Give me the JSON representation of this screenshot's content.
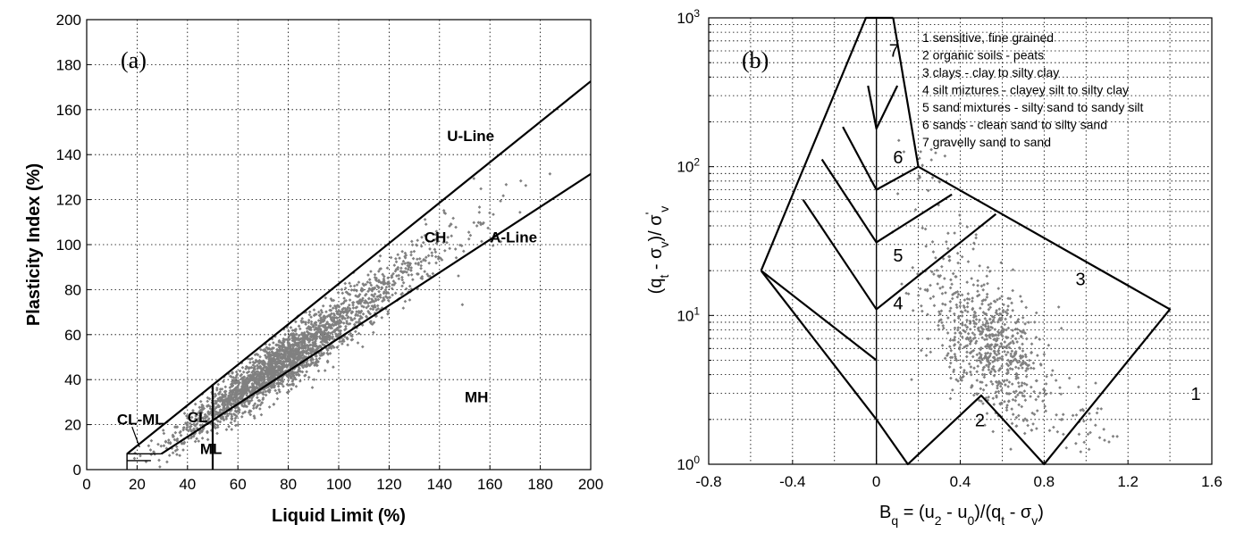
{
  "chart_data": [
    {
      "type": "scatter",
      "panel_label": "(a)",
      "xlabel": "Liquid Limit (%)",
      "ylabel": "Plasticity Index (%)",
      "xlim": [
        0,
        200
      ],
      "ylim": [
        0,
        200
      ],
      "xticks": [
        "0",
        "20",
        "40",
        "60",
        "80",
        "100",
        "120",
        "140",
        "160",
        "180",
        "200"
      ],
      "yticks": [
        "0",
        "20",
        "40",
        "60",
        "80",
        "100",
        "120",
        "140",
        "160",
        "180",
        "200"
      ],
      "grid": true,
      "marker_color": "#808080",
      "line_color": "#000000",
      "lines": [
        {
          "label": "U-Line",
          "points": [
            [
              16,
              7
            ],
            [
              200,
              172.6
            ]
          ]
        },
        {
          "label": "A-Line",
          "points": [
            [
              29.6,
              7
            ],
            [
              200,
              131.4
            ]
          ]
        }
      ],
      "regions": [
        {
          "label": "U-Line",
          "at": [
            143,
            146
          ]
        },
        {
          "label": "CH",
          "at": [
            134,
            101
          ]
        },
        {
          "label": "A-Line",
          "at": [
            160,
            101
          ]
        },
        {
          "label": "MH",
          "at": [
            150,
            30
          ]
        },
        {
          "label": "CL-ML",
          "at": [
            12,
            20
          ]
        },
        {
          "label": "CL",
          "at": [
            40,
            21
          ]
        },
        {
          "label": "ML",
          "at": [
            45,
            7
          ]
        }
      ],
      "points_model": {
        "n": 2500,
        "ll_range": [
          16,
          200
        ],
        "ll_mode": 70,
        "pi_center": "0.8*(LL-18)",
        "spread": 3.5
      }
    },
    {
      "type": "scatter",
      "panel_label": "(b)",
      "xlabel_main": "B",
      "xlabel_sub": "q",
      "xlabel_rest": " = (u",
      "xlabel_sub2": "2",
      "xlabel_rest2": " - u",
      "xlabel_sub3": "0",
      "xlabel_rest3": ")/(q",
      "xlabel_sub4": "t",
      "xlabel_rest4": " - σ",
      "xlabel_sub5": "v",
      "xlabel_rest5": ")",
      "ylabel_main": "(q",
      "ylabel_sub": "t",
      "ylabel_rest": " - σ",
      "ylabel_sub2": "v",
      "ylabel_rest2": ")/ σ",
      "ylabel_sup": "'",
      "ylabel_sub3": "v",
      "xlim": [
        -0.8,
        1.6
      ],
      "ylim": [
        1,
        1000
      ],
      "yscale": "log",
      "xticks": [
        "-0.8",
        "-0.4",
        "0",
        "0.4",
        "0.8",
        "1.2",
        "1.6"
      ],
      "yticks": [
        {
          "base": "10",
          "exp": "0"
        },
        {
          "base": "10",
          "exp": "1"
        },
        {
          "base": "10",
          "exp": "2"
        },
        {
          "base": "10",
          "exp": "3"
        }
      ],
      "grid": true,
      "marker_color": "#808080",
      "legend": [
        "1 sensitive, fine grained",
        "2 organic soils - peats",
        "3 clays - clay to silty clay",
        "4 silt miztures - clayey silt to silty clay",
        "5 sand mixtures - silty sand to sandy silt",
        "6 sands - clean sand to silty sand",
        "7 gravelly sand to sand"
      ],
      "zones": [
        {
          "label": "1",
          "at": [
            1.5,
            2.7
          ]
        },
        {
          "label": "2",
          "at": [
            0.47,
            1.8
          ]
        },
        {
          "label": "3",
          "at": [
            0.95,
            16
          ]
        },
        {
          "label": "4",
          "at": [
            0.08,
            11
          ]
        },
        {
          "label": "5",
          "at": [
            0.08,
            23
          ]
        },
        {
          "label": "6",
          "at": [
            0.08,
            105
          ]
        },
        {
          "label": "7",
          "at": [
            0.06,
            550
          ]
        }
      ],
      "boundaries": [
        [
          [
            -0.55,
            20
          ],
          [
            0,
            2
          ],
          [
            0.15,
            1
          ],
          [
            0.5,
            2.9
          ],
          [
            0.8,
            1
          ],
          [
            1.4,
            11
          ],
          [
            0.2,
            100
          ],
          [
            0.08,
            1000
          ]
        ],
        [
          [
            -0.55,
            20
          ],
          [
            -0.05,
            1000
          ],
          [
            0.08,
            1000
          ]
        ],
        [
          [
            -0.55,
            20
          ],
          [
            0,
            5
          ]
        ],
        [
          [
            -0.35,
            60
          ],
          [
            0,
            11
          ],
          [
            0.57,
            48
          ]
        ],
        [
          [
            -0.26,
            112
          ],
          [
            0,
            31
          ],
          [
            0.36,
            65
          ]
        ],
        [
          [
            -0.16,
            185
          ],
          [
            0,
            70
          ],
          [
            0.2,
            100
          ]
        ],
        [
          [
            -0.04,
            350
          ],
          [
            0,
            180
          ],
          [
            0.1,
            350
          ]
        ],
        [
          [
            0,
            1
          ],
          [
            0,
            1000
          ]
        ]
      ],
      "points_model": {
        "n": 750,
        "bq_center": 0.55,
        "bq_sd": 0.15,
        "log_q_center": 0.8,
        "log_q_sd": 0.22
      }
    }
  ]
}
